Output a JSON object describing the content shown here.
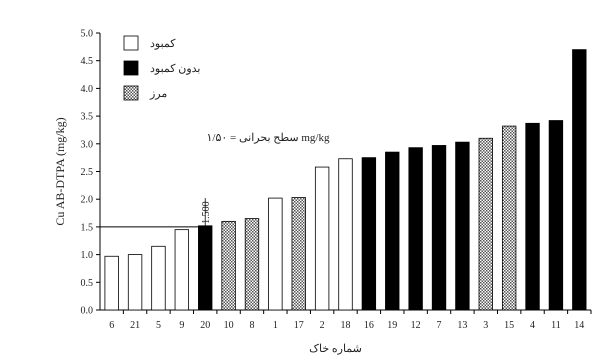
{
  "chart_data": {
    "type": "bar",
    "title": "",
    "ylabel": "Cu AB-DTPA (mg/kg)",
    "xlabel": "شماره خاک",
    "ylim": [
      0.0,
      5.0
    ],
    "yticks": [
      "0.0",
      "0.5",
      "1.0",
      "1.5",
      "2.0",
      "2.5",
      "3.0",
      "3.5",
      "4.0",
      "4.5",
      "5.0"
    ],
    "categories": [
      "6",
      "21",
      "5",
      "9",
      "20",
      "10",
      "8",
      "1",
      "17",
      "2",
      "18",
      "16",
      "19",
      "12",
      "7",
      "13",
      "3",
      "15",
      "4",
      "11",
      "14"
    ],
    "values": [
      0.97,
      1.0,
      1.15,
      1.45,
      1.52,
      1.6,
      1.65,
      2.02,
      2.03,
      2.58,
      2.73,
      2.75,
      2.85,
      2.93,
      2.97,
      3.03,
      3.1,
      3.32,
      3.37,
      3.42,
      4.7
    ],
    "classes": [
      "deficient",
      "deficient",
      "deficient",
      "deficient",
      "sufficient",
      "borderline",
      "borderline",
      "deficient",
      "borderline",
      "deficient",
      "deficient",
      "sufficient",
      "sufficient",
      "sufficient",
      "sufficient",
      "sufficient",
      "borderline",
      "borderline",
      "sufficient",
      "sufficient",
      "sufficient"
    ],
    "legend": [
      {
        "key": "deficient",
        "label": "کمبود",
        "fill": "#ffffff"
      },
      {
        "key": "sufficient",
        "label": "بدون کمبود",
        "fill": "#000000"
      },
      {
        "key": "borderline",
        "label": "مرز",
        "fill": "pattern"
      }
    ],
    "threshold": {
      "value": 1.5,
      "label": "سطح بحرانی = ۱/۵۰ mg/kg",
      "tick_label": "1.500"
    },
    "legend_position": "top-left",
    "grid": false
  }
}
